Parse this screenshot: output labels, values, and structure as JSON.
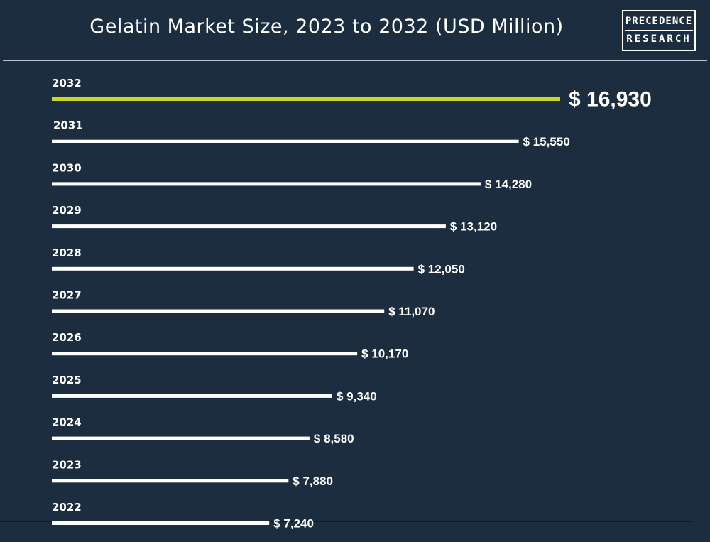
{
  "title": "Gelatin Market Size, 2023 to 2032 (USD Million)",
  "logo": {
    "line1": "PRECEDENCE",
    "line2": "RESEARCH"
  },
  "colors": {
    "background": "#1d2d40",
    "bar": "#ffffff",
    "highlight_bar": "#c6d821",
    "text": "#ffffff"
  },
  "chart_data": {
    "type": "bar",
    "orientation": "horizontal",
    "title": "Gelatin Market Size, 2023 to 2032 (USD Million)",
    "categories": [
      "2032",
      "2031",
      "2030",
      "2029",
      "2028",
      "2027",
      "2026",
      "2025",
      "2024",
      "2023",
      "2022"
    ],
    "values": [
      16930,
      15550,
      14280,
      13120,
      12050,
      11070,
      10170,
      9340,
      8580,
      7880,
      7240
    ],
    "value_labels": [
      "$ 16,930",
      "$ 15,550",
      "$ 14,280",
      "$ 13,120",
      "$ 12,050",
      "$ 11,070",
      "$ 10,170",
      "$ 9,340",
      "$ 8,580",
      "$ 7,880",
      "$ 7,240"
    ],
    "highlight_category": "2032",
    "xlabel": "",
    "ylabel": "",
    "grid": false,
    "legend": "none"
  }
}
